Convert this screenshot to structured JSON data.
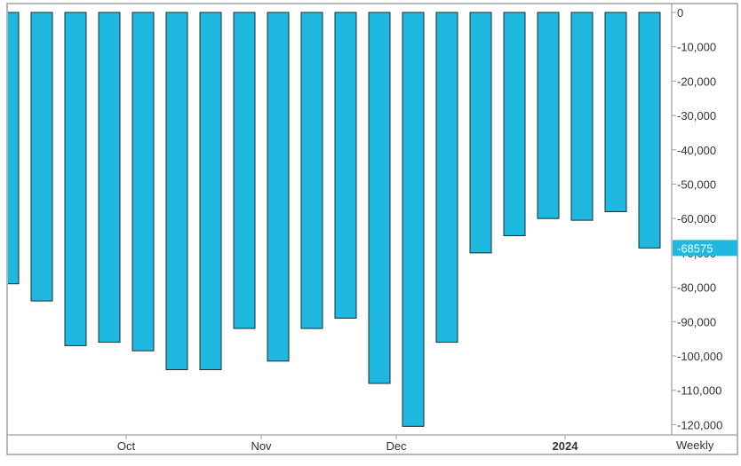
{
  "chart_data": {
    "type": "bar",
    "title": "",
    "xlabel": "",
    "ylabel": "",
    "frequency_label": "Weekly",
    "ylim": [
      -122000,
      0
    ],
    "y_ticks": [
      {
        "value": 0,
        "label": "0"
      },
      {
        "value": -10000,
        "label": "-10,000"
      },
      {
        "value": -20000,
        "label": "-20,000"
      },
      {
        "value": -30000,
        "label": "-30,000"
      },
      {
        "value": -40000,
        "label": "-40,000"
      },
      {
        "value": -50000,
        "label": "-50,000"
      },
      {
        "value": -60000,
        "label": "-60,000"
      },
      {
        "value": -70000,
        "label": "-70,000"
      },
      {
        "value": -80000,
        "label": "-80,000"
      },
      {
        "value": -90000,
        "label": "-90,000"
      },
      {
        "value": -100000,
        "label": "-100,000"
      },
      {
        "value": -110000,
        "label": "-110,000"
      },
      {
        "value": -120000,
        "label": "-120,000"
      }
    ],
    "x_ticks": [
      {
        "label": "Oct",
        "after_bar_index": 3,
        "bold": false
      },
      {
        "label": "Nov",
        "after_bar_index": 7,
        "bold": false
      },
      {
        "label": "Dec",
        "after_bar_index": 11,
        "bold": false
      },
      {
        "label": "2024",
        "after_bar_index": 16,
        "bold": true
      }
    ],
    "values": [
      -79000,
      -84000,
      -97000,
      -96000,
      -98500,
      -104000,
      -104000,
      -92000,
      -101500,
      -92000,
      -89000,
      -108000,
      -120500,
      -96000,
      -70000,
      -65000,
      -60000,
      -60500,
      -58000,
      -68575
    ],
    "last_value_label": "-68575",
    "bar_color": "#1fb8e0",
    "bar_stroke": "#1c2b33",
    "label_highlight_color": "#1fb8e0"
  }
}
